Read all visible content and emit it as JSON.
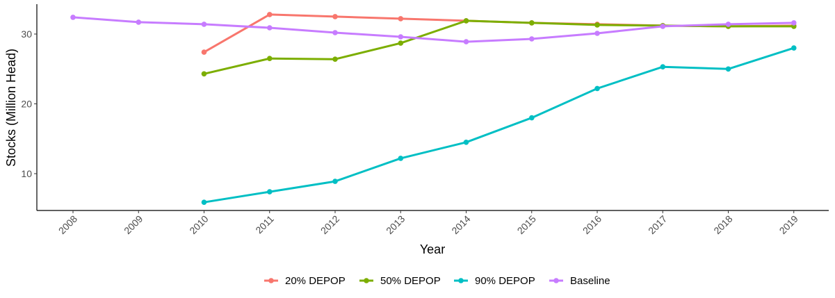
{
  "chart_data": {
    "type": "line",
    "title": "",
    "xlabel": "Year",
    "ylabel": "Stocks (Million Head)",
    "x": [
      2008,
      2009,
      2010,
      2011,
      2012,
      2013,
      2014,
      2015,
      2016,
      2017,
      2018,
      2019
    ],
    "x_ticks": [
      "2008",
      "2009",
      "2010",
      "2011",
      "2012",
      "2013",
      "2014",
      "2015",
      "2016",
      "2017",
      "2018",
      "2019"
    ],
    "y_ticks": [
      "10",
      "20",
      "30"
    ],
    "ylim": [
      4.7,
      34.3
    ],
    "grid": false,
    "legend_position": "bottom",
    "series": [
      {
        "name": "20% DEPOP",
        "color": "#F8766D",
        "values": [
          null,
          null,
          27.4,
          32.8,
          32.5,
          32.2,
          31.9,
          31.6,
          31.4,
          31.2,
          31.1,
          31.2
        ]
      },
      {
        "name": "50% DEPOP",
        "color": "#7CAE00",
        "values": [
          null,
          null,
          24.3,
          26.5,
          26.4,
          28.7,
          31.9,
          31.6,
          31.3,
          31.2,
          31.1,
          31.1
        ]
      },
      {
        "name": "90% DEPOP",
        "color": "#00BFC4",
        "values": [
          null,
          null,
          5.9,
          7.4,
          8.9,
          12.2,
          14.5,
          18.0,
          22.2,
          25.3,
          25.0,
          28.0
        ]
      },
      {
        "name": "Baseline",
        "color": "#C77CFF",
        "values": [
          32.4,
          31.7,
          31.4,
          30.9,
          30.2,
          29.6,
          28.9,
          29.3,
          30.1,
          31.1,
          31.4,
          31.6
        ]
      }
    ]
  }
}
